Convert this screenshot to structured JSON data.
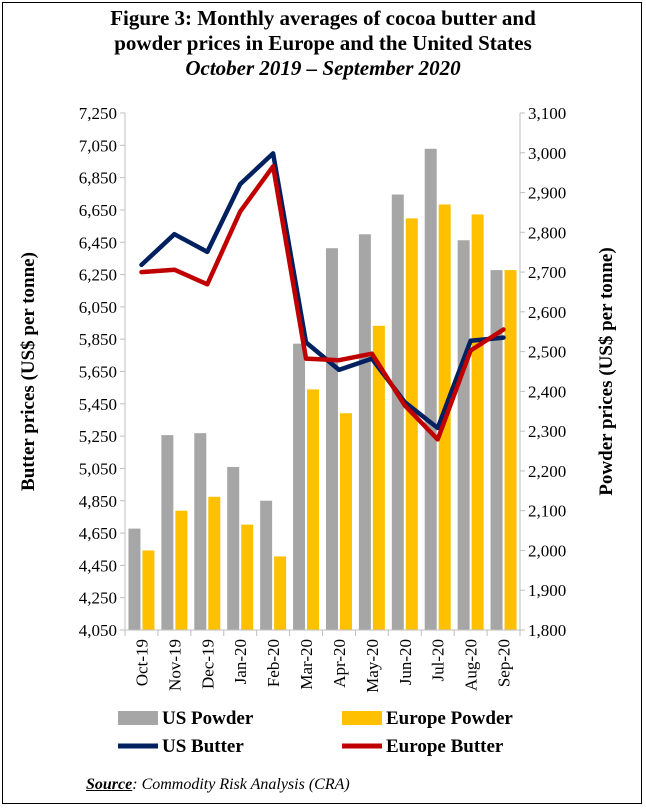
{
  "source_label": "Source",
  "source_text": ": Commodity Risk Analysis (CRA)",
  "chart_data": {
    "type": "bar",
    "title": "Figure 3: Monthly averages of cocoa butter and powder prices in Europe and the United States",
    "title_line1": "Figure 3: Monthly averages of cocoa butter and",
    "title_line2": "powder prices in Europe and the United States",
    "subtitle": "October 2019 – September 2020",
    "ylabel": "Butter prices (US$ per tonne)",
    "y2label": "Powder prices (US$ per tonne)",
    "categories": [
      "Oct-19",
      "Nov-19",
      "Dec-19",
      "Jan-20",
      "Feb-20",
      "Mar-20",
      "Apr-20",
      "May-20",
      "Jun-20",
      "Jul-20",
      "Aug-20",
      "Sep-20"
    ],
    "ylim": [
      4050,
      7250
    ],
    "y2lim": [
      1800,
      3100
    ],
    "yticks": [
      "4,050",
      "4,250",
      "4,450",
      "4,650",
      "4,850",
      "5,050",
      "5,250",
      "5,450",
      "5,650",
      "5,850",
      "6,050",
      "6,250",
      "6,450",
      "6,650",
      "6,850",
      "7,050",
      "7,250"
    ],
    "y2ticks": [
      "1,800",
      "1,900",
      "2,000",
      "2,100",
      "2,200",
      "2,300",
      "2,400",
      "2,500",
      "2,600",
      "2,700",
      "2,800",
      "2,900",
      "3,000",
      "3,100"
    ],
    "grid": false,
    "legend_position": "bottom",
    "series": [
      {
        "name": "US Powder",
        "kind": "bar",
        "axis": "right",
        "color": "#a6a6a6",
        "values": [
          2055,
          2290,
          2295,
          2210,
          2125,
          2520,
          2760,
          2795,
          2895,
          3010,
          2780,
          2705
        ]
      },
      {
        "name": "Europe Powder",
        "kind": "bar",
        "axis": "right",
        "color": "#ffc000",
        "values": [
          2000,
          2100,
          2135,
          2065,
          1985,
          2405,
          2345,
          2565,
          2835,
          2870,
          2845,
          2705
        ]
      },
      {
        "name": "US Butter",
        "kind": "line",
        "axis": "left",
        "color": "#002060",
        "values": [
          6310,
          6500,
          6390,
          6810,
          7000,
          5830,
          5660,
          5730,
          5460,
          5300,
          5840,
          5860
        ]
      },
      {
        "name": "Europe Butter",
        "kind": "line",
        "axis": "left",
        "color": "#c00000",
        "values": [
          6265,
          6280,
          6190,
          6640,
          6920,
          5730,
          5720,
          5760,
          5440,
          5230,
          5780,
          5910
        ]
      }
    ]
  }
}
